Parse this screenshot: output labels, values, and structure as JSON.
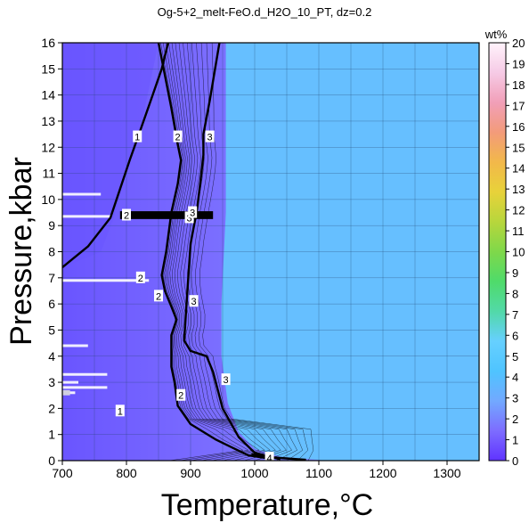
{
  "chart_data": {
    "type": "heatmap",
    "title": "Og-5+2_melt-FeO.d_H2O_10_PT, dz=0.2",
    "xlabel": "Temperature,°C",
    "ylabel": "Pressure,kbar",
    "xlim": [
      700,
      1350
    ],
    "ylim": [
      0,
      16
    ],
    "x_ticks": [
      700,
      800,
      900,
      1000,
      1100,
      1200,
      1300
    ],
    "y_ticks": [
      0,
      1,
      2,
      3,
      4,
      5,
      6,
      7,
      8,
      9,
      10,
      11,
      12,
      13,
      14,
      15,
      16
    ],
    "grid": true,
    "colorbar": {
      "label": "wt%",
      "min": 0,
      "max": 20,
      "ticks": [
        0,
        1,
        2,
        3,
        4,
        5,
        6,
        7,
        8,
        9,
        10,
        11,
        12,
        13,
        14,
        15,
        16,
        17,
        18,
        19,
        20
      ],
      "colors": [
        "#6033ff",
        "#7d6cff",
        "#72a9ff",
        "#4fc4ff",
        "#66d0ff",
        "#52d9a8",
        "#4fdb6a",
        "#7fd84a",
        "#b7d63c",
        "#e8d23a",
        "#f2b84a",
        "#f39b7a",
        "#f19fb8",
        "#f6cbe6",
        "#fff3fb"
      ]
    },
    "field_color_above_solidus": "#66bfff",
    "field_color_low": "#7b5cff",
    "contours": [
      {
        "label": "1",
        "points": [
          [
            700,
            7.4
          ],
          [
            710,
            7.6
          ],
          [
            740,
            8.2
          ],
          [
            775,
            9.3
          ],
          [
            790,
            10.4
          ],
          [
            805,
            11.5
          ],
          [
            818,
            12.4
          ],
          [
            838,
            13.8
          ],
          [
            855,
            15.0
          ],
          [
            865,
            16.0
          ]
        ]
      },
      {
        "label": "2",
        "points": [
          [
            850,
            16.0
          ],
          [
            870,
            13.5
          ],
          [
            880,
            12.1
          ],
          [
            885,
            11.5
          ],
          [
            880,
            10.6
          ],
          [
            870,
            9.5
          ],
          [
            862,
            8.0
          ],
          [
            855,
            7.1
          ],
          [
            860,
            6.5
          ],
          [
            870,
            5.9
          ],
          [
            878,
            5.4
          ],
          [
            870,
            4.8
          ],
          [
            870,
            3.6
          ],
          [
            875,
            3.0
          ],
          [
            880,
            2.1
          ],
          [
            900,
            1.4
          ],
          [
            940,
            0.8
          ],
          [
            990,
            0.2
          ],
          [
            1030,
            0.05
          ]
        ]
      },
      {
        "label": "3",
        "points": [
          [
            945,
            16.0
          ],
          [
            930,
            13.8
          ],
          [
            920,
            12.5
          ],
          [
            920,
            11.7
          ],
          [
            915,
            10.6
          ],
          [
            910,
            9.6
          ],
          [
            900,
            8.3
          ],
          [
            895,
            6.5
          ],
          [
            890,
            4.6
          ],
          [
            900,
            4.2
          ],
          [
            925,
            4.0
          ],
          [
            935,
            3.4
          ],
          [
            950,
            2.0
          ],
          [
            975,
            0.9
          ],
          [
            1000,
            0.3
          ],
          [
            1040,
            0.05
          ]
        ]
      },
      {
        "label": "4",
        "points": [
          [
            995,
            0.25
          ],
          [
            1030,
            0.12
          ],
          [
            1080,
            0.03
          ]
        ]
      }
    ],
    "contour_labels": [
      {
        "text": "1",
        "x": 817,
        "y": 12.4
      },
      {
        "text": "2",
        "x": 880,
        "y": 12.4
      },
      {
        "text": "3",
        "x": 930,
        "y": 12.4
      },
      {
        "text": "2",
        "x": 800,
        "y": 9.4
      },
      {
        "text": "3",
        "x": 898,
        "y": 9.3
      },
      {
        "text": "3",
        "x": 903,
        "y": 9.5
      },
      {
        "text": "2",
        "x": 822,
        "y": 7.0
      },
      {
        "text": "2",
        "x": 850,
        "y": 6.3
      },
      {
        "text": "3",
        "x": 905,
        "y": 6.1
      },
      {
        "text": "3",
        "x": 955,
        "y": 3.1
      },
      {
        "text": "2",
        "x": 885,
        "y": 2.5
      },
      {
        "text": "1",
        "x": 790,
        "y": 1.9
      },
      {
        "text": "4",
        "x": 1023,
        "y": 0.1
      }
    ]
  }
}
